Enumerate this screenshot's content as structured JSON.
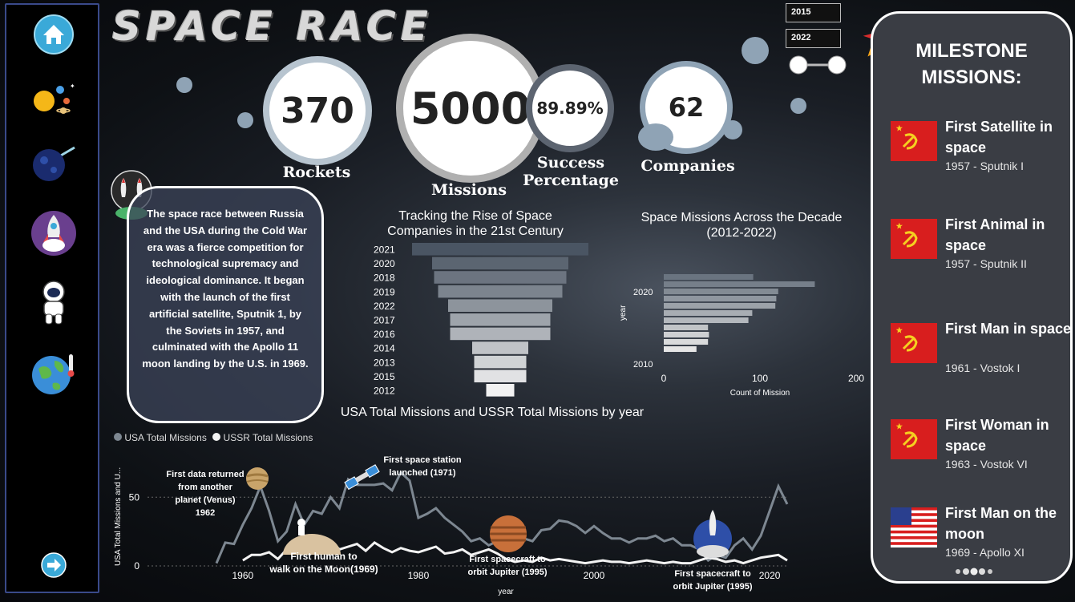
{
  "title": "SPACE RACE",
  "kpis": {
    "rockets": {
      "value": "370",
      "label": "Rockets"
    },
    "missions": {
      "value": "5000",
      "label": "Missions"
    },
    "success": {
      "value": "89.89%",
      "label_line1": "Success",
      "label_line2": "Percentage"
    },
    "companies": {
      "value": "62",
      "label": "Companies"
    }
  },
  "year_slicer": {
    "start": "2015",
    "end": "2022"
  },
  "description": "The space race between Russia and the USA during the Cold War era was a fierce competition for technological supremacy and ideological dominance. It began with the launch of the first artificial satellite, Sputnik 1, by the Soviets in 1957, and culminated with the Apollo 11 moon landing by the U.S. in 1969.",
  "sidebar": {
    "icons": [
      "home-icon",
      "solar-system-icon",
      "comet-icon",
      "rocket-icon",
      "astronaut-icon",
      "earth-icon",
      "next-arrow-icon"
    ]
  },
  "milestones": {
    "title_line1": "MILESTONE",
    "title_line2": "MISSIONS:",
    "items": [
      {
        "name": "First Satellite in space",
        "sub": "1957 - Sputnik I",
        "flag": "ussr"
      },
      {
        "name": "First Animal in space",
        "sub": "1957 - Sputnik II",
        "flag": "ussr"
      },
      {
        "name": "First Man in space",
        "sub": "1961 - Vostok I",
        "flag": "ussr"
      },
      {
        "name": "First Woman in space",
        "sub": "1963 - Vostok VI",
        "flag": "ussr"
      },
      {
        "name": "First Man on the moon",
        "sub": "1969 - Apollo XI",
        "flag": "usa"
      }
    ]
  },
  "colors": {
    "bar_dark": "#4a5563",
    "bar_light": "#f2f2f2",
    "usa_line": "#7d8791",
    "ussr_line": "#f2f2f2",
    "panel": "#3a3d44"
  },
  "chart_data": [
    {
      "type": "bar",
      "title_line1": "Tracking the Rise of Space",
      "title_line2": "Companies in the 21st Century",
      "categories": [
        "2021",
        "2020",
        "2018",
        "2019",
        "2022",
        "2017",
        "2016",
        "2014",
        "2013",
        "2015",
        "2012"
      ],
      "values": [
        22,
        17,
        16.5,
        15.5,
        13,
        12.5,
        12.5,
        7,
        6.5,
        6.5,
        3.5
      ],
      "orientation": "horizontal-centered"
    },
    {
      "type": "bar",
      "title_line1": "Space Missions Across the Decade",
      "title_line2": "(2012-2022)",
      "ylabel": "year",
      "xlabel": "Count of Mission",
      "categories": [
        "2022",
        "2021",
        "2020",
        "2019",
        "2018",
        "2017",
        "2016",
        "2015",
        "2014",
        "2013",
        "2012"
      ],
      "y_tick_labels": [
        "2020",
        "2010"
      ],
      "x_ticks": [
        "0",
        "100",
        "200"
      ],
      "values": [
        93,
        157,
        119,
        117,
        116,
        92,
        88,
        46,
        47,
        46,
        34
      ],
      "xlim": [
        0,
        200
      ]
    },
    {
      "type": "line",
      "title": "USA Total Missions and USSR Total Missions by year",
      "xlabel": "year",
      "ylabel": "USA Total Missions and U...",
      "x_ticks": [
        "1960",
        "1980",
        "2000",
        "2020"
      ],
      "y_ticks": [
        "0",
        "50"
      ],
      "xlim": [
        1957,
        2022
      ],
      "ylim": [
        0,
        70
      ],
      "series": [
        {
          "name": "USA Total Missions",
          "x": [
            1957,
            1958,
            1959,
            1960,
            1961,
            1962,
            1963,
            1964,
            1965,
            1966,
            1967,
            1968,
            1969,
            1970,
            1971,
            1972,
            1973,
            1974,
            1975,
            1976,
            1977,
            1978,
            1979,
            1980,
            1981,
            1982,
            1983,
            1984,
            1985,
            1986,
            1987,
            1988,
            1989,
            1990,
            1991,
            1992,
            1993,
            1994,
            1995,
            1996,
            1997,
            1998,
            1999,
            2000,
            2001,
            2002,
            2003,
            2004,
            2005,
            2006,
            2007,
            2008,
            2009,
            2010,
            2011,
            2012,
            2013,
            2014,
            2015,
            2016,
            2017,
            2018,
            2019,
            2020,
            2021,
            2022
          ],
          "y": [
            2,
            17,
            16,
            30,
            42,
            58,
            40,
            18,
            25,
            45,
            30,
            40,
            38,
            50,
            42,
            63,
            59,
            59,
            59,
            60,
            55,
            68,
            62,
            35,
            38,
            42,
            35,
            30,
            25,
            18,
            20,
            15,
            18,
            24,
            22,
            20,
            18,
            26,
            27,
            33,
            32,
            29,
            24,
            29,
            24,
            20,
            20,
            17,
            20,
            20,
            22,
            18,
            20,
            15,
            15,
            12,
            4,
            8,
            6,
            15,
            20,
            12,
            22,
            40,
            58,
            45
          ]
        },
        {
          "name": "USSR Total Missions",
          "x": [
            1957,
            1958,
            1959,
            1960,
            1961,
            1962,
            1963,
            1964,
            1965,
            1966,
            1967,
            1968,
            1969,
            1970,
            1971,
            1972,
            1973,
            1974,
            1975,
            1976,
            1977,
            1978,
            1979,
            1980,
            1981,
            1982,
            1983,
            1984,
            1985,
            1986,
            1987,
            1988,
            1989,
            1990,
            1991,
            1992,
            1993,
            1994,
            1995,
            1996,
            1997,
            1998,
            1999,
            2000,
            2001,
            2002,
            2003,
            2004,
            2005,
            2006,
            2007,
            2008,
            2009,
            2010,
            2011,
            2012,
            2013,
            2014,
            2015,
            2016,
            2017,
            2018,
            2019,
            2020,
            2021,
            2022
          ],
          "y": [
            null,
            null,
            null,
            4,
            8,
            8,
            10,
            5,
            12,
            15,
            10,
            12,
            13,
            18,
            12,
            14,
            16,
            11,
            17,
            13,
            10,
            13,
            11,
            10,
            12,
            14,
            9,
            10,
            12,
            8,
            10,
            12,
            9,
            5,
            3,
            4,
            3,
            6,
            4,
            5,
            4,
            3,
            2,
            3,
            4,
            3,
            3,
            2,
            3,
            4,
            3,
            2,
            3,
            2,
            2,
            4,
            6,
            5,
            3,
            4,
            2,
            4,
            6,
            7,
            8,
            4
          ]
        }
      ],
      "annotations": [
        {
          "text_line1": "First data returned",
          "text_line2": "from another",
          "text_line3": "planet (Venus)",
          "text_line4": "1962"
        },
        {
          "text_line1": "First space station",
          "text_line2": "launched (1971)"
        },
        {
          "text_line1": "First human to",
          "text_line2": "walk on the Moon(1969)"
        },
        {
          "text_line1": "First spacecraft to",
          "text_line2": "orbit Jupiter (1995)"
        },
        {
          "text_line1": "First spacecraft to",
          "text_line2": "orbit Jupiter (1995)"
        }
      ]
    }
  ]
}
